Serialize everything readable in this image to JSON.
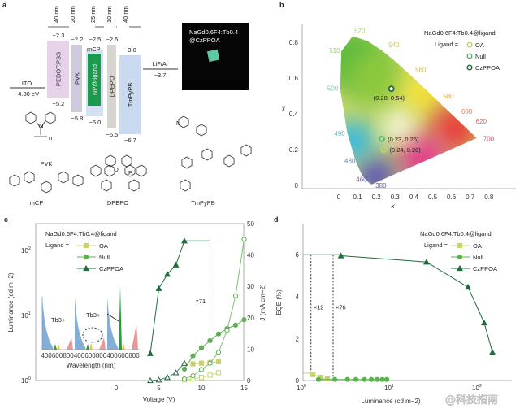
{
  "panel_a": {
    "label": "a",
    "thicknesses": [
      "40 nm",
      "20 nm",
      "25 nm",
      "10 nm",
      "40 nm"
    ],
    "ito": {
      "name": "ITO",
      "value": "−4.80 eV"
    },
    "lif": {
      "name": "LiF/Al",
      "value": "−3.7"
    },
    "layers": [
      {
        "name": "PEDOT:PSS",
        "lumo": "−2.3",
        "homo": "−5.2",
        "color": "#e6d3ea"
      },
      {
        "name": "PVK",
        "lumo": "−2.2",
        "homo": "−5.8",
        "color": "#cfc9dc"
      },
      {
        "name": "mCP",
        "lumo": "−2.5",
        "homo": "−6.0",
        "color": "#d3e1f3"
      },
      {
        "name": "DPEPO",
        "lumo": "−2.5",
        "homo": "−6.5",
        "color": "#d8d4cf"
      },
      {
        "name": "TmPyPB",
        "lumo": "−3.0",
        "homo": "−6.7",
        "color": "#c9d9ef"
      }
    ],
    "emitter": {
      "name": "NP@ligand",
      "color": "#1a9a4a"
    },
    "inset_line1": "NaGd0.6F4:Tb0.4",
    "inset_line2": "@CzPPOA",
    "molecules": [
      "PVK",
      "mCP",
      "DPEPO",
      "TmPyPB"
    ],
    "atom_n": "N",
    "atom_o": "O",
    "atom_p": "P",
    "sub_n": "n"
  },
  "chart_data": [
    {
      "panel": "b",
      "type": "scatter",
      "title": "NaGd0.6F4:Tb0.4@ligand",
      "xlabel": "x",
      "ylabel": "y",
      "xlim": [
        -0.05,
        0.85
      ],
      "ylim": [
        0,
        0.9
      ],
      "xticks": [
        "0",
        "0.1",
        "0.2",
        "0.3",
        "0.4",
        "0.5",
        "0.6",
        "0.7",
        "0.8"
      ],
      "yticks": [
        "0",
        "0.2",
        "0.4",
        "0.6",
        "0.8"
      ],
      "legend_prefix": "Ligand =",
      "series": [
        {
          "name": "OA",
          "x": 0.24,
          "y": 0.2,
          "label": "(0.24, 0.20)",
          "color": "#b9d66a"
        },
        {
          "name": "Null",
          "x": 0.23,
          "y": 0.26,
          "label": "(0.23, 0.26)",
          "color": "#5cb86a"
        },
        {
          "name": "CzPPOA",
          "x": 0.28,
          "y": 0.54,
          "label": "(0.28, 0.54)",
          "color": "#1d6b3a"
        }
      ],
      "wavelength_labels": [
        {
          "nm": "380",
          "x": 0.174,
          "y": 0.005
        },
        {
          "nm": "460",
          "x": 0.144,
          "y": 0.03
        },
        {
          "nm": "480",
          "x": 0.091,
          "y": 0.133
        },
        {
          "nm": "490",
          "x": 0.045,
          "y": 0.295
        },
        {
          "nm": "500",
          "x": 0.008,
          "y": 0.538
        },
        {
          "nm": "510",
          "x": 0.014,
          "y": 0.75
        },
        {
          "nm": "520",
          "x": 0.074,
          "y": 0.834
        },
        {
          "nm": "540",
          "x": 0.23,
          "y": 0.754
        },
        {
          "nm": "560",
          "x": 0.373,
          "y": 0.624
        },
        {
          "nm": "580",
          "x": 0.512,
          "y": 0.487
        },
        {
          "nm": "600",
          "x": 0.627,
          "y": 0.373
        },
        {
          "nm": "620",
          "x": 0.691,
          "y": 0.308
        },
        {
          "nm": "700",
          "x": 0.735,
          "y": 0.265
        }
      ],
      "locus": [
        [
          0.174,
          0.005
        ],
        [
          0.144,
          0.03
        ],
        [
          0.124,
          0.058
        ],
        [
          0.091,
          0.133
        ],
        [
          0.045,
          0.295
        ],
        [
          0.008,
          0.538
        ],
        [
          0.014,
          0.75
        ],
        [
          0.074,
          0.834
        ],
        [
          0.155,
          0.806
        ],
        [
          0.23,
          0.754
        ],
        [
          0.302,
          0.692
        ],
        [
          0.373,
          0.624
        ],
        [
          0.444,
          0.555
        ],
        [
          0.512,
          0.487
        ],
        [
          0.627,
          0.373
        ],
        [
          0.691,
          0.308
        ],
        [
          0.735,
          0.265
        ]
      ]
    },
    {
      "panel": "c",
      "type": "line",
      "title": "NaGd0.6F4:Tb0.4@ligand",
      "xlabel": "Voltage (V)",
      "ylabel": "Luminance (cd m−2)",
      "y2label": "J (mA cm−2)",
      "xlim": [
        -13.6,
        15
      ],
      "ylim_log": [
        1,
        250
      ],
      "y2lim": [
        0,
        50
      ],
      "xticks": [
        "0",
        "5",
        "10",
        "15"
      ],
      "yticks": [
        "10^0",
        "10^1",
        "10^2"
      ],
      "y2ticks": [
        "0",
        "10",
        "20",
        "30",
        "40",
        "50"
      ],
      "legend_prefix": "Ligand =",
      "annotation": "×71",
      "series": [
        {
          "name": "OA",
          "color": "#c9d36b",
          "marker": "square",
          "voltage": [
            9,
            10,
            11,
            12
          ],
          "luminance": [
            1.8,
            1.85,
            1.9,
            1.95
          ],
          "J_voltage": [
            8,
            9,
            10,
            11,
            12
          ],
          "J": [
            0.2,
            0.5,
            1.0,
            1.7,
            2.5
          ]
        },
        {
          "name": "Null",
          "color": "#5cb04f",
          "marker": "circle",
          "voltage": [
            8,
            9,
            10,
            11,
            12,
            13,
            14,
            15
          ],
          "luminance": [
            1.5,
            2.4,
            3.2,
            4.1,
            5.2,
            6.3,
            7.1,
            8.6
          ],
          "J_voltage": [
            8,
            9,
            10,
            11,
            12,
            13,
            14,
            15
          ],
          "J": [
            0.5,
            1.5,
            3.5,
            5.5,
            9,
            16,
            27,
            45
          ]
        },
        {
          "name": "CzPPOA",
          "color": "#1f6b3b",
          "marker": "triangle",
          "voltage": [
            4,
            5,
            6,
            7,
            8
          ],
          "luminance": [
            2.6,
            26,
            43,
            60,
            140
          ],
          "J_voltage": [
            4,
            5,
            6,
            7,
            8
          ],
          "J": [
            0,
            0.2,
            1,
            2.5,
            5.5
          ]
        }
      ],
      "inset": {
        "xlabel": "Wavelength (nm)",
        "xticks": [
          "400",
          "600",
          "800",
          "400",
          "600",
          "800",
          "400",
          "600",
          "800"
        ],
        "annotation": "Tb3+"
      }
    },
    {
      "panel": "d",
      "type": "line",
      "title": "NaGd0.6F4:Tb0.4@ligand",
      "xlabel": "Luminance (cd m−2)",
      "ylabel": "EQE (%)",
      "xlim_log": [
        1,
        200
      ],
      "ylim": [
        0,
        7
      ],
      "xticks": [
        "10^0",
        "10^1",
        "10^2"
      ],
      "yticks": [
        "0",
        "2",
        "4",
        "6"
      ],
      "legend_prefix": "Ligand =",
      "annotations": [
        {
          "text": "×12",
          "luminance": 1.23
        },
        {
          "text": "×76",
          "luminance": 2.2
        }
      ],
      "series": [
        {
          "name": "OA",
          "color": "#c9d36b",
          "marker": "square",
          "luminance": [
            1.3,
            1.6,
            1.9
          ],
          "eqe": [
            0.28,
            0.15,
            0.08
          ]
        },
        {
          "name": "Null",
          "color": "#5cb04f",
          "marker": "circle",
          "luminance": [
            1.5,
            2.3,
            3.2,
            4,
            5,
            6,
            7,
            8,
            9
          ],
          "eqe": [
            0.05,
            0.05,
            0.05,
            0.05,
            0.05,
            0.05,
            0.05,
            0.05,
            0.05
          ]
        },
        {
          "name": "CzPPOA",
          "color": "#1f6b3b",
          "marker": "triangle",
          "luminance": [
            2.7,
            25.5,
            76,
            116,
            144
          ],
          "eqe": [
            5.95,
            5.65,
            4.45,
            2.75,
            1.35
          ]
        }
      ]
    }
  ],
  "labels": {
    "b": "b",
    "c": "c",
    "d": "d"
  },
  "watermark": "@科技指南"
}
